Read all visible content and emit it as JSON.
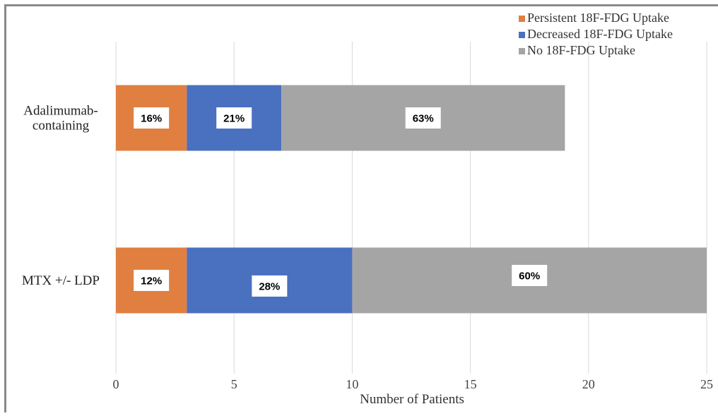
{
  "chart_data": {
    "type": "bar",
    "orientation": "horizontal",
    "stacked": true,
    "categories": [
      "Adalimumab-\ncontaining",
      "MTX +/- LDP"
    ],
    "series": [
      {
        "name": "Persistent 18F-FDG Uptake",
        "color": "#E07F40",
        "values": [
          3,
          3
        ],
        "labels": [
          "16%",
          "12%"
        ]
      },
      {
        "name": "Decreased 18F-FDG Uptake",
        "color": "#4A70C0",
        "values": [
          4,
          7
        ],
        "labels": [
          "21%",
          "28%"
        ]
      },
      {
        "name": "No 18F-FDG Uptake",
        "color": "#A5A5A5",
        "values": [
          12,
          15
        ],
        "labels": [
          "63%",
          "60%"
        ]
      }
    ],
    "xlabel": "Number of Patients",
    "xlim": [
      0,
      25
    ],
    "xticks": [
      0,
      5,
      10,
      15,
      20,
      25
    ],
    "grid": "vertical",
    "legend_position": "top-right"
  }
}
